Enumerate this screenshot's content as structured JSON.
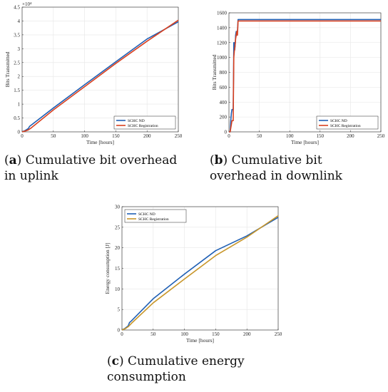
{
  "captions": {
    "a": {
      "letter": "a",
      "text": " Cumulative bit overhead in uplink"
    },
    "b": {
      "letter": "b",
      "text": " Cumulative bit overhead in downlink"
    },
    "c": {
      "letter": "c",
      "text": " Cumulative energy consumption"
    }
  },
  "colors": {
    "nd": "#1f5fb4",
    "reg": "#d9401f",
    "reg_c": "#c8962a",
    "grid": "#e6e6e6",
    "axis": "#262626"
  },
  "chart_data": [
    {
      "id": "a",
      "type": "line",
      "xlabel": "Time [hours]",
      "ylabel": "Bits Transmitted",
      "xlim": [
        0,
        250
      ],
      "ylim": [
        0,
        45000
      ],
      "xticks": [
        0,
        50,
        100,
        150,
        200,
        250
      ],
      "yticks": [
        0,
        5000,
        10000,
        15000,
        20000,
        25000,
        30000,
        35000,
        40000,
        45000
      ],
      "ytick_labels": [
        "0",
        "0.5",
        "1",
        "1.5",
        "2",
        "2.5",
        "3",
        "3.5",
        "4",
        "4.5"
      ],
      "exponent_label": "×10⁴",
      "grid": true,
      "legend_position": "bottom-right",
      "series": [
        {
          "name": "SCHC ND",
          "color": "#1f5fb4",
          "x": [
            0,
            5,
            10,
            12,
            15,
            50,
            100,
            150,
            200,
            250
          ],
          "y": [
            0,
            500,
            1200,
            2000,
            2500,
            8600,
            17000,
            25300,
            33500,
            39700
          ]
        },
        {
          "name": "SCHC Registration",
          "color": "#d9401f",
          "x": [
            0,
            5,
            10,
            15,
            50,
            100,
            150,
            200,
            250
          ],
          "y": [
            0,
            300,
            700,
            1500,
            7900,
            16300,
            24700,
            32700,
            40300
          ]
        }
      ]
    },
    {
      "id": "b",
      "type": "line",
      "xlabel": "Time [hours]",
      "ylabel": "Bits Transmitted",
      "xlim": [
        0,
        250
      ],
      "ylim": [
        0,
        1600
      ],
      "xticks": [
        0,
        50,
        100,
        150,
        200,
        250
      ],
      "yticks": [
        0,
        200,
        400,
        600,
        800,
        1000,
        1200,
        1400,
        1600
      ],
      "ytick_labels": [
        "0",
        "200",
        "400",
        "600",
        "800",
        "1000",
        "1200",
        "1400",
        "1600"
      ],
      "grid": true,
      "legend_position": "bottom-right",
      "series": [
        {
          "name": "SCHC ND",
          "color": "#1f5fb4",
          "x": [
            0,
            2,
            3,
            4,
            5,
            6,
            7,
            7.5,
            8,
            9,
            9.5,
            10,
            10.5,
            11,
            12,
            13,
            14,
            15,
            250
          ],
          "y": [
            0,
            0,
            150,
            250,
            300,
            300,
            300,
            700,
            1200,
            1200,
            1100,
            1150,
            1200,
            1300,
            1350,
            1300,
            1350,
            1510,
            1510
          ]
        },
        {
          "name": "SCHC Registration",
          "color": "#d9401f",
          "x": [
            0,
            2,
            3,
            4,
            5,
            6,
            7,
            7.5,
            8,
            9,
            10,
            11,
            12,
            13,
            14,
            15,
            250
          ],
          "y": [
            0,
            0,
            50,
            100,
            150,
            150,
            150,
            600,
            1000,
            1100,
            1150,
            1250,
            1300,
            1350,
            1300,
            1490,
            1490
          ]
        }
      ]
    },
    {
      "id": "c",
      "type": "line",
      "xlabel": "Time [hours]",
      "ylabel": "Energy consumption [J]",
      "xlim": [
        0,
        250
      ],
      "ylim": [
        0,
        30
      ],
      "xticks": [
        0,
        50,
        100,
        150,
        200,
        250
      ],
      "yticks": [
        0,
        5,
        10,
        15,
        20,
        25,
        30
      ],
      "ytick_labels": [
        "0",
        "5",
        "10",
        "15",
        "20",
        "25",
        "30"
      ],
      "grid": true,
      "legend_position": "top-left",
      "series": [
        {
          "name": "SCHC ND",
          "color": "#1f5fb4",
          "x": [
            0,
            5,
            10,
            12,
            15,
            50,
            100,
            150,
            200,
            250
          ],
          "y": [
            0,
            0.4,
            1.0,
            1.8,
            2.2,
            7.6,
            13.6,
            19.3,
            22.9,
            27.4
          ]
        },
        {
          "name": "SCHC Registration",
          "color": "#c8962a",
          "x": [
            0,
            5,
            10,
            15,
            50,
            100,
            150,
            200,
            250
          ],
          "y": [
            0,
            0.3,
            0.8,
            1.6,
            6.6,
            12.4,
            18.1,
            22.6,
            27.8
          ]
        }
      ]
    }
  ]
}
